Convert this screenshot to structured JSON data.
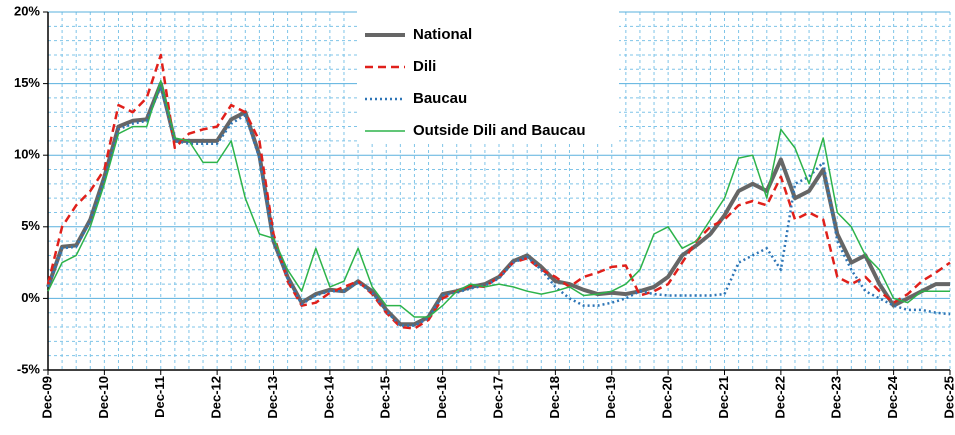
{
  "chart_data": {
    "type": "line",
    "categories": [
      "Dec-09",
      null,
      null,
      null,
      "Dec-10",
      null,
      null,
      null,
      "Dec-11",
      null,
      null,
      null,
      "Dec-12",
      null,
      null,
      null,
      "Dec-13",
      null,
      null,
      null,
      "Dec-14",
      null,
      null,
      null,
      "Dec-15",
      null,
      null,
      null,
      "Dec-16",
      null,
      null,
      null,
      "Dec-17",
      null,
      null,
      null,
      "Dec-18",
      null,
      null,
      null,
      "Dec-19",
      null,
      null,
      null,
      "Dec-20",
      null,
      null,
      null,
      "Dec-21",
      null,
      null,
      null,
      "Dec-22",
      null,
      null,
      null,
      "Dec-23",
      null,
      null,
      null,
      "Dec-24",
      null,
      null,
      null,
      "Dec-25"
    ],
    "series": [
      {
        "name": "National",
        "color": "#666666",
        "line_style": "solid",
        "line_width": 4,
        "values": [
          0.8,
          3.6,
          3.7,
          5.5,
          8.5,
          12,
          12.4,
          12.5,
          15,
          11,
          11,
          11,
          11,
          12.5,
          13,
          10,
          4,
          1.5,
          -0.3,
          0.3,
          0.6,
          0.5,
          1.2,
          0.5,
          -0.8,
          -1.8,
          -1.8,
          -1.3,
          0.3,
          0.5,
          0.8,
          1,
          1.5,
          2.6,
          3,
          2.2,
          1.2,
          1,
          0.6,
          0.3,
          0.4,
          0.3,
          0.5,
          0.8,
          1.5,
          3,
          3.7,
          4.5,
          5.8,
          7.5,
          8,
          7.5,
          9.7,
          7,
          7.5,
          9,
          4.5,
          2.5,
          3,
          1,
          -0.5,
          0,
          0.5,
          1,
          1
        ]
      },
      {
        "name": "Dili",
        "color": "#e0201b",
        "line_style": "dashed",
        "line_width": 2.5,
        "values": [
          1,
          5,
          6.5,
          7.5,
          9,
          13.5,
          13,
          14,
          17,
          10.5,
          11.5,
          11.8,
          12,
          13.5,
          13,
          11,
          4.5,
          1.2,
          -0.5,
          -0.3,
          0.4,
          0.8,
          1.2,
          0.3,
          -1,
          -2,
          -2.1,
          -1.5,
          0,
          0.5,
          0.9,
          0.8,
          1.5,
          2.5,
          2.8,
          2,
          1.5,
          0.8,
          1.5,
          1.8,
          2.2,
          2.3,
          0.2,
          0.5,
          1,
          2.5,
          4,
          5,
          5.5,
          6.5,
          6.8,
          6.5,
          8.5,
          5.5,
          6,
          5.5,
          1.5,
          1,
          1.5,
          0.5,
          -0.3,
          0.3,
          1.2,
          1.8,
          2.5
        ]
      },
      {
        "name": "Baucau",
        "color": "#2e75b6",
        "line_style": "dotted",
        "line_width": 2.5,
        "values": [
          0.8,
          3.5,
          3.6,
          5.4,
          8.3,
          11.8,
          12.2,
          12.4,
          14.8,
          11,
          10.8,
          10.8,
          10.8,
          12.2,
          12.8,
          9.8,
          4,
          1.4,
          -0.4,
          0.2,
          0.5,
          0.5,
          1.1,
          0.4,
          -0.9,
          -1.9,
          -1.9,
          -1.4,
          0.2,
          0.4,
          0.7,
          0.9,
          1.4,
          2.5,
          2.9,
          2,
          0.8,
          0,
          -0.5,
          -0.5,
          -0.3,
          0,
          0.5,
          0.3,
          0.2,
          0.2,
          0.2,
          0.2,
          0.3,
          2.5,
          3,
          3.5,
          2,
          8,
          8.5,
          9.5,
          4,
          2,
          0.5,
          0,
          -0.5,
          -0.8,
          -0.8,
          -1,
          -1.1
        ]
      },
      {
        "name": "Outside Dili and Baucau",
        "color": "#2db34a",
        "line_style": "solid",
        "line_width": 1.5,
        "values": [
          0.5,
          2.5,
          3,
          5,
          8,
          11.5,
          12,
          12,
          15.2,
          11.2,
          11,
          9.5,
          9.5,
          11,
          7,
          4.5,
          4.2,
          2,
          0.5,
          3.5,
          0.8,
          1.2,
          3.5,
          0.8,
          -0.5,
          -0.5,
          -1.3,
          -1.3,
          -0.5,
          0.5,
          1,
          0.8,
          1,
          0.8,
          0.5,
          0.3,
          0.5,
          0.8,
          0.2,
          0.3,
          0.5,
          1,
          2,
          4.5,
          5,
          3.5,
          4,
          5.5,
          7,
          9.8,
          10,
          7,
          11.8,
          10.5,
          8,
          11.2,
          6,
          5,
          3,
          2,
          0,
          -0.3,
          0.5,
          0.5,
          0.5
        ]
      }
    ],
    "ylim": [
      -5,
      20
    ],
    "yticks": [
      {
        "value": -5,
        "label": "-5%"
      },
      {
        "value": 0,
        "label": "0%"
      },
      {
        "value": 5,
        "label": "5%"
      },
      {
        "value": 10,
        "label": "10%"
      },
      {
        "value": 15,
        "label": "15%"
      },
      {
        "value": 20,
        "label": "20%"
      }
    ],
    "grid": true,
    "legend": "top-center"
  }
}
